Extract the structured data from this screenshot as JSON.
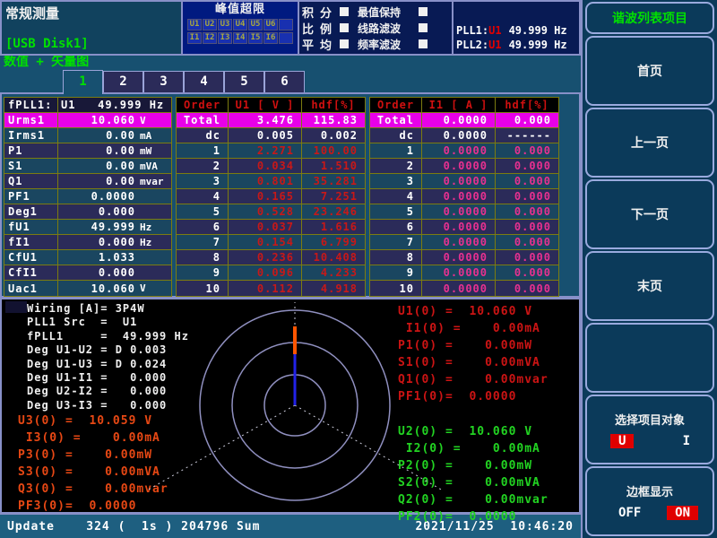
{
  "colors": {
    "accent_green": "#00e000",
    "bright_green": "#22d422",
    "alert_red": "#e00000",
    "dark_red": "#cc1414",
    "table_header_red": "#d01010",
    "table_value_red": "#c81818",
    "table_value_pink": "#e83090",
    "magenta": "#e800e8",
    "orange": "#e84814",
    "vector_blue": "#2222e8",
    "vector_orange": "#ff5500",
    "circle_lavender": "#9090c0"
  },
  "header": {
    "title": "常规测量",
    "usb_label": "[USB Disk1]",
    "peak_over": {
      "title": "峰值超限",
      "u_cells": [
        "U1",
        "U2",
        "U3",
        "U4",
        "U5",
        "U6",
        ""
      ],
      "i_cells": [
        "I1",
        "I2",
        "I3",
        "I4",
        "I5",
        "I6",
        ""
      ]
    },
    "toggles": [
      {
        "l1": "积",
        "l2": "分",
        "r": "最值保持"
      },
      {
        "l1": "比",
        "l2": "例",
        "r": "线路滤波"
      },
      {
        "l1": "平",
        "l2": "均",
        "r": "频率滤波"
      }
    ],
    "pll": [
      {
        "name": "PLL1:",
        "src": "U1",
        "value": "49.999 Hz"
      },
      {
        "name": "PLL2:",
        "src": "U1",
        "value": "49.999 Hz"
      }
    ]
  },
  "view_label": "数值 + 矢量图",
  "tabs": [
    "1",
    "2",
    "3",
    "4",
    "5",
    "6"
  ],
  "active_tab": "1",
  "left_table": {
    "fpll_label": "fPLL1:",
    "fpll_value": "U1   49.999 Hz",
    "rows": [
      {
        "name": "Urms1",
        "value": "10.060",
        "unit": "V",
        "hl": true
      },
      {
        "name": "Irms1",
        "value": "0.00",
        "unit": "mA"
      },
      {
        "name": "P1",
        "value": "0.00",
        "unit": "mW"
      },
      {
        "name": "S1",
        "value": "0.00",
        "unit": "mVA"
      },
      {
        "name": "Q1",
        "value": "0.00",
        "unit": "mvar"
      },
      {
        "name": "PF1",
        "value": "0.0000",
        "unit": ""
      },
      {
        "name": "Deg1",
        "value": "0.000",
        "unit": ""
      },
      {
        "name": "fU1",
        "value": "49.999",
        "unit": "Hz"
      },
      {
        "name": "fI1",
        "value": "0.000",
        "unit": "Hz"
      },
      {
        "name": "CfU1",
        "value": "1.033",
        "unit": ""
      },
      {
        "name": "CfI1",
        "value": "0.000",
        "unit": ""
      },
      {
        "name": "Uac1",
        "value": "10.060",
        "unit": "V"
      }
    ]
  },
  "u_table": {
    "headers": [
      "Order",
      "U1 [ V ]",
      "hdf[%]"
    ],
    "total": [
      "Total",
      "3.476",
      "115.83"
    ],
    "dc": [
      "dc",
      "0.005",
      "0.002"
    ],
    "rows": [
      [
        "1",
        "2.271",
        "100.00"
      ],
      [
        "2",
        "0.034",
        "1.510"
      ],
      [
        "3",
        "0.801",
        "35.281"
      ],
      [
        "4",
        "0.165",
        "7.251"
      ],
      [
        "5",
        "0.528",
        "23.246"
      ],
      [
        "6",
        "0.037",
        "1.616"
      ],
      [
        "7",
        "0.154",
        "6.799"
      ],
      [
        "8",
        "0.236",
        "10.408"
      ],
      [
        "9",
        "0.096",
        "4.233"
      ],
      [
        "10",
        "0.112",
        "4.918"
      ]
    ]
  },
  "i_table": {
    "headers": [
      "Order",
      "I1 [ A ]",
      "hdf[%]"
    ],
    "total": [
      "Total",
      "0.0000",
      "0.000"
    ],
    "dc": [
      "dc",
      "0.0000",
      "------"
    ],
    "rows": [
      [
        "1",
        "0.0000",
        "0.000"
      ],
      [
        "2",
        "0.0000",
        "0.000"
      ],
      [
        "3",
        "0.0000",
        "0.000"
      ],
      [
        "4",
        "0.0000",
        "0.000"
      ],
      [
        "5",
        "0.0000",
        "0.000"
      ],
      [
        "6",
        "0.0000",
        "0.000"
      ],
      [
        "7",
        "0.0000",
        "0.000"
      ],
      [
        "8",
        "0.0000",
        "0.000"
      ],
      [
        "9",
        "0.0000",
        "0.000"
      ],
      [
        "10",
        "0.0000",
        "0.000"
      ]
    ]
  },
  "vector_panel": {
    "info_lines": [
      "Wiring [A]= 3P4W",
      "PLL1 Src  =  U1",
      "fPLL1     =  49.999 Hz",
      "Deg U1-U2 = D 0.003",
      "Deg U1-U3 = D 0.024",
      "Deg U1-I1 =   0.000",
      "Deg U2-I2 =   0.000",
      "Deg U3-I3 =   0.000"
    ],
    "u3_lines": [
      "U3(0) =  10.059 V",
      " I3(0) =    0.00mA",
      "P3(0) =    0.00mW",
      "S3(0) =    0.00mVA",
      "Q3(0) =    0.00mvar",
      "PF3(0)=  0.0000"
    ],
    "u1_lines": [
      "U1(0) =  10.060 V",
      " I1(0) =    0.00mA",
      "P1(0) =    0.00mW",
      "S1(0) =    0.00mVA",
      "Q1(0) =    0.00mvar",
      "PF1(0)=  0.0000"
    ],
    "u2_lines": [
      "U2(0) =  10.060 V",
      " I2(0) =    0.00mA",
      "P2(0) =    0.00mW",
      "S2(0) =    0.00mVA",
      "Q2(0) =    0.00mvar",
      "PF2(0)=  0.0000"
    ]
  },
  "status": {
    "update_text": "Update    324 (  1s ) 204796 Sum",
    "datetime": "2021/11/25  10:46:20"
  },
  "sidebar": {
    "title": "谐波列表项目",
    "nav_buttons": [
      "首页",
      "上一页",
      "下一页",
      "末页"
    ],
    "select_item": {
      "label": "选择项目对象",
      "options": [
        {
          "label": "U",
          "active": true
        },
        {
          "label": "I",
          "active": false
        }
      ]
    },
    "border_display": {
      "label": "边框显示",
      "options": [
        {
          "label": "OFF",
          "active": false
        },
        {
          "label": "ON",
          "active": true
        }
      ]
    }
  }
}
